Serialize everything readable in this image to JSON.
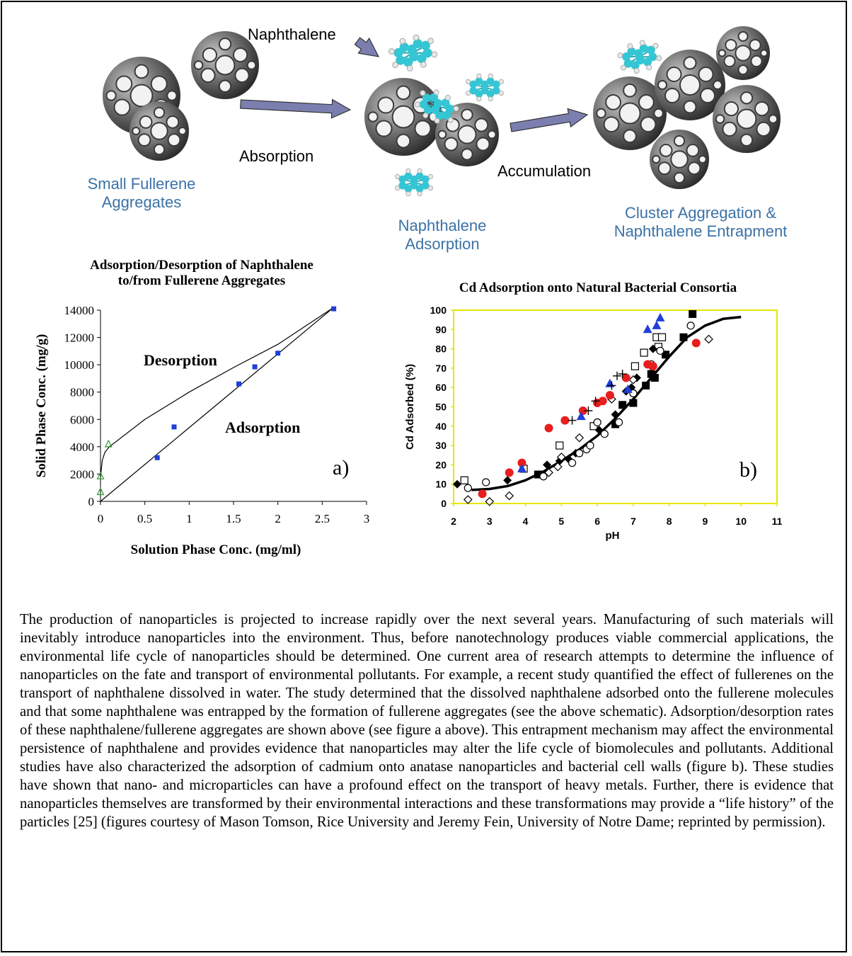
{
  "schematic": {
    "naphthalene_label": "Naphthalene",
    "absorption_label": "Absorption",
    "accumulation_label": "Accumulation",
    "stage1": [
      "Small Fullerene",
      "Aggregates"
    ],
    "stage2": [
      "Naphthalene",
      "Adsorption"
    ],
    "stage3": [
      "Cluster Aggregation &",
      "Naphthalene Entrapment"
    ],
    "label_color": "#3b72a6",
    "arrow_color": "#7b7fb0",
    "fullerene_color": "#555555",
    "naphthalene_color": "#34c6d4"
  },
  "chart_data": [
    {
      "type": "scatter",
      "title": [
        "Adsorption/Desorption of Naphthalene",
        "to/from Fullerene Aggregates"
      ],
      "xlabel": "Solution Phase Conc. (mg/ml)",
      "ylabel": "Solid Phase Conc. (mg/g)",
      "xlim": [
        0,
        3
      ],
      "ylim": [
        0,
        14000
      ],
      "xticks": [
        "0",
        "0.5",
        "1",
        "1.5",
        "2",
        "2.5",
        "3"
      ],
      "yticks": [
        "0",
        "2000",
        "4000",
        "6000",
        "8000",
        "10000",
        "12000",
        "14000"
      ],
      "panel_label": "a)",
      "annotations": [
        "Desorption",
        "Adsorption"
      ],
      "series": [
        {
          "marker": "square",
          "color": "#1f3fd6",
          "points": [
            [
              0.64,
              3200
            ],
            [
              0.83,
              5450
            ],
            [
              1.56,
              8600
            ],
            [
              1.74,
              9850
            ],
            [
              2.0,
              10850
            ],
            [
              2.63,
              14100
            ]
          ]
        },
        {
          "marker": "triangle-open",
          "color": "#2e9e2e",
          "points": [
            [
              0.0,
              700
            ],
            [
              0.0,
              1850
            ],
            [
              0.09,
              4200
            ]
          ]
        }
      ],
      "curves": [
        {
          "name": "Desorption",
          "points": [
            [
              0.0,
              1800
            ],
            [
              0.02,
              3000
            ],
            [
              0.05,
              3600
            ],
            [
              0.1,
              4000
            ],
            [
              0.5,
              6000
            ],
            [
              1.0,
              8000
            ],
            [
              1.5,
              9800
            ],
            [
              2.0,
              11500
            ],
            [
              2.63,
              14200
            ]
          ]
        },
        {
          "name": "Adsorption",
          "points": [
            [
              0.0,
              0
            ],
            [
              2.63,
              14200
            ]
          ]
        }
      ]
    },
    {
      "type": "scatter",
      "title": "Cd Adsorption onto Natural Bacterial Consortia",
      "xlabel": "pH",
      "ylabel": "Cd Adsorbed (%)",
      "xlim": [
        2,
        11
      ],
      "ylim": [
        0,
        100
      ],
      "xticks": [
        "2",
        "3",
        "4",
        "5",
        "6",
        "7",
        "8",
        "9",
        "10",
        "11"
      ],
      "yticks": [
        "0",
        "10",
        "20",
        "30",
        "40",
        "50",
        "60",
        "70",
        "80",
        "90",
        "100"
      ],
      "panel_label": "b)",
      "axis_color": "#e6e600",
      "curve": [
        [
          2.5,
          7
        ],
        [
          3,
          7.5
        ],
        [
          3.5,
          9
        ],
        [
          4,
          12
        ],
        [
          4.5,
          16.5
        ],
        [
          5,
          22
        ],
        [
          5.5,
          28
        ],
        [
          6,
          35
        ],
        [
          6.5,
          44
        ],
        [
          7,
          54
        ],
        [
          7.5,
          65
        ],
        [
          8,
          76
        ],
        [
          8.5,
          86
        ],
        [
          9,
          92
        ],
        [
          9.5,
          95.5
        ],
        [
          10,
          96.5
        ]
      ],
      "series": [
        {
          "marker": "square-filled",
          "color": "#000000",
          "points": [
            [
              4.35,
              15
            ],
            [
              6.5,
              41
            ],
            [
              6.7,
              51
            ],
            [
              7.0,
              52
            ],
            [
              7.35,
              61
            ],
            [
              7.6,
              65
            ],
            [
              7.5,
              67
            ],
            [
              7.9,
              77
            ],
            [
              8.4,
              86
            ],
            [
              8.65,
              98
            ]
          ]
        },
        {
          "marker": "square-open",
          "color": "#000000",
          "points": [
            [
              2.3,
              12
            ],
            [
              3.95,
              18
            ],
            [
              4.95,
              30
            ],
            [
              5.9,
              40
            ],
            [
              7.05,
              71
            ],
            [
              7.3,
              78
            ],
            [
              7.65,
              86
            ],
            [
              7.8,
              86
            ],
            [
              7.7,
              81
            ]
          ]
        },
        {
          "marker": "diamond-filled",
          "color": "#000000",
          "points": [
            [
              2.1,
              10
            ],
            [
              3.5,
              12
            ],
            [
              4.6,
              20
            ],
            [
              4.95,
              22
            ],
            [
              5.2,
              23
            ],
            [
              5.4,
              26
            ],
            [
              6.05,
              38
            ],
            [
              6.5,
              46
            ],
            [
              6.8,
              58
            ],
            [
              6.95,
              60
            ],
            [
              7.1,
              65
            ],
            [
              7.55,
              80
            ]
          ]
        },
        {
          "marker": "diamond-open",
          "color": "#000000",
          "points": [
            [
              2.4,
              2
            ],
            [
              3.0,
              1
            ],
            [
              3.55,
              4
            ],
            [
              4.65,
              16
            ],
            [
              4.9,
              19
            ],
            [
              5.0,
              24
            ],
            [
              5.5,
              34
            ],
            [
              6.4,
              54
            ],
            [
              7.0,
              64
            ],
            [
              7.5,
              71
            ],
            [
              9.1,
              85
            ]
          ]
        },
        {
          "marker": "circle-open",
          "color": "#000000",
          "points": [
            [
              2.4,
              8
            ],
            [
              2.9,
              11
            ],
            [
              4.5,
              14
            ],
            [
              5.3,
              21
            ],
            [
              5.5,
              26
            ],
            [
              5.7,
              28
            ],
            [
              5.8,
              30
            ],
            [
              6.0,
              42
            ],
            [
              6.2,
              36
            ],
            [
              6.6,
              42
            ],
            [
              7.0,
              57
            ],
            [
              7.5,
              72
            ],
            [
              7.75,
              79
            ],
            [
              8.6,
              92
            ]
          ]
        },
        {
          "marker": "circle-filled",
          "color": "#e81e1e",
          "points": [
            [
              2.8,
              5
            ],
            [
              3.55,
              16
            ],
            [
              3.9,
              21
            ],
            [
              4.65,
              39
            ],
            [
              5.1,
              43
            ],
            [
              5.6,
              48
            ],
            [
              6.0,
              52
            ],
            [
              6.15,
              53
            ],
            [
              6.35,
              56
            ],
            [
              6.8,
              65
            ],
            [
              7.4,
              72
            ],
            [
              7.55,
              71
            ],
            [
              8.75,
              83
            ]
          ]
        },
        {
          "marker": "triangle-filled",
          "color": "#1f3fd6",
          "points": [
            [
              3.9,
              18
            ],
            [
              5.55,
              45
            ],
            [
              6.35,
              62
            ],
            [
              6.85,
              59
            ],
            [
              7.4,
              90
            ],
            [
              7.65,
              92
            ],
            [
              7.75,
              96
            ]
          ]
        },
        {
          "marker": "plus",
          "color": "#000000",
          "points": [
            [
              5.3,
              43
            ],
            [
              5.75,
              48
            ],
            [
              5.95,
              53
            ],
            [
              6.4,
              61
            ],
            [
              6.55,
              66
            ],
            [
              6.7,
              67
            ]
          ]
        }
      ]
    }
  ],
  "body_text": "The production of nanoparticles is projected to increase rapidly over the next several years. Manufacturing of such materials will inevitably introduce nanoparticles into the environment. Thus, before nanotechnology produces viable commercial applications, the environmental life cycle of nanoparticles should be determined. One current area of research attempts to determine the influence of nanoparticles on the fate and transport of environmental pollutants. For example, a recent study quantified the effect of fullerenes on the transport of naphthalene dissolved in water. The study determined that the dissolved naphthalene adsorbed onto the fullerene molecules and that some naphthalene was entrapped by the formation of fullerene aggregates (see the above schematic). Adsorption/desorption rates of these naphthalene/fullerene aggregates are shown above (see figure a above). This entrapment mechanism may affect the environmental persistence of naphthalene and provides evidence that nanoparticles may alter the life cycle of biomolecules and pollutants. Additional studies have also characterized the adsorption of cadmium onto anatase nanoparticles and bacterial cell walls (figure b). These studies have shown that nano- and microparticles can have a profound effect on the transport of heavy metals. Further, there is evidence that nanoparticles themselves are transformed by their environmental interactions and these transformations may provide a “life history” of the particles [25] (figures courtesy of Mason Tomson, Rice University and Jeremy Fein, University of Notre Dame; reprinted by permission)."
}
